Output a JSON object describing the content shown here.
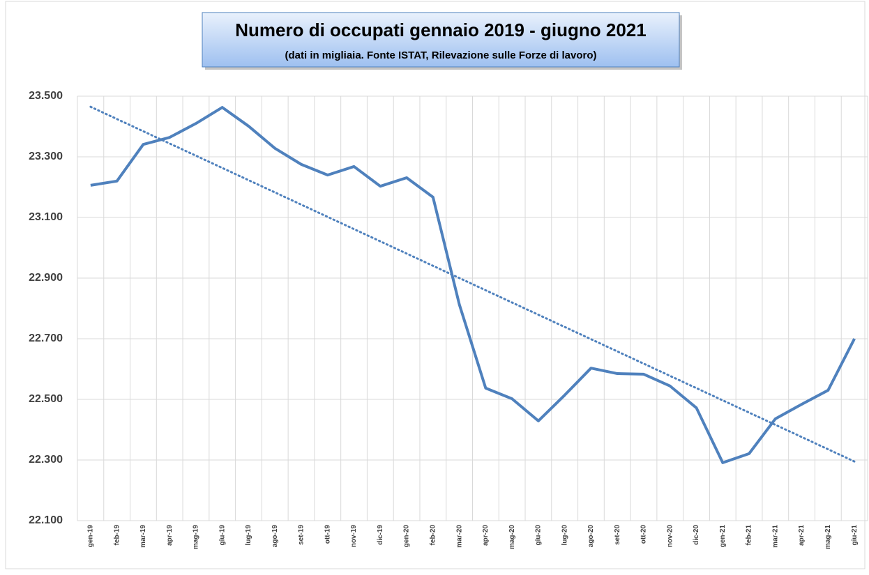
{
  "chart_data": {
    "type": "line",
    "title": "Numero di occupati gennaio 2019 - giugno 2021",
    "subtitle": "(dati in migliaia. Fonte ISTAT, Rilevazione sulle Forze di lavoro)",
    "categories": [
      "gen-19",
      "feb-19",
      "mar-19",
      "apr-19",
      "mag-19",
      "giu-19",
      "lug-19",
      "ago-19",
      "set-19",
      "ott-19",
      "nov-19",
      "dic-19",
      "gen-20",
      "feb-20",
      "mar-20",
      "apr-20",
      "mag-20",
      "giu-20",
      "lug-20",
      "ago-20",
      "set-20",
      "ott-20",
      "nov-20",
      "dic-20",
      "gen-21",
      "feb-21",
      "mar-21",
      "apr-21",
      "mag-21",
      "giu-21"
    ],
    "values": [
      23206,
      23220,
      23341,
      23364,
      23410,
      23463,
      23401,
      23328,
      23275,
      23240,
      23268,
      23203,
      23231,
      23167,
      22813,
      22537,
      22502,
      22429,
      22514,
      22603,
      22585,
      22583,
      22544,
      22472,
      22291,
      22321,
      22436,
      22484,
      22530,
      22700
    ],
    "color": "#4f81bd",
    "trend": {
      "values": [
        23465,
        22295
      ],
      "color": "#4f81bd",
      "style": "dotted"
    },
    "ylim": [
      22100,
      23500
    ],
    "yticks": [
      {
        "value": 22100,
        "label": "22.100"
      },
      {
        "value": 22300,
        "label": "22.300"
      },
      {
        "value": 22500,
        "label": "22.500"
      },
      {
        "value": 22700,
        "label": "22.700"
      },
      {
        "value": 22900,
        "label": "22.900"
      },
      {
        "value": 23100,
        "label": "23.100"
      },
      {
        "value": 23300,
        "label": "23.300"
      },
      {
        "value": 23500,
        "label": "23.500"
      }
    ],
    "grid": true
  }
}
